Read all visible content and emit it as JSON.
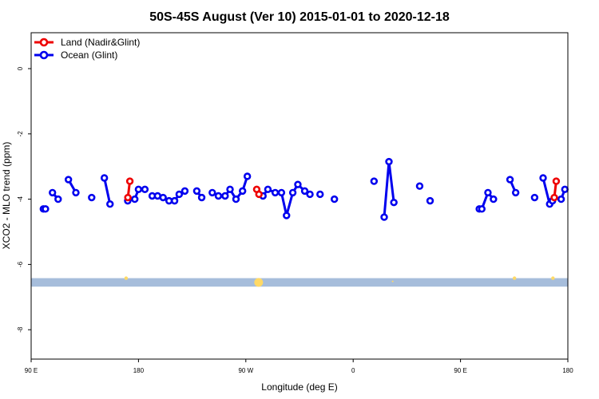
{
  "chart_data": {
    "type": "line",
    "title": "50S-45S August (Ver 10)   2015-01-01 to 2020-12-18",
    "xlabel": "Longitude (deg E)",
    "ylabel": "XCO2 - MLO trend (ppm)",
    "xlim": [
      90,
      450
    ],
    "ylim": [
      -8.9,
      1.1
    ],
    "x_ticks": [
      {
        "value": 90,
        "label": "90 E"
      },
      {
        "value": 162,
        "label": "180"
      },
      {
        "value": 234,
        "label": "90 W"
      },
      {
        "value": 306,
        "label": "0"
      },
      {
        "value": 378,
        "label": "90 E"
      },
      {
        "value": 450,
        "label": "180"
      }
    ],
    "y_ticks": [
      {
        "value": 0,
        "label": "0"
      },
      {
        "value": -2,
        "label": "-2"
      },
      {
        "value": -4,
        "label": "-4"
      },
      {
        "value": -6,
        "label": "-6"
      },
      {
        "value": -8,
        "label": "-8"
      }
    ],
    "legend_position": "top-left",
    "series": [
      {
        "name": "Land (Nadir&Glint)",
        "color": "#ee0000",
        "segments": [
          [
            [
              154.9,
              -3.95
            ],
            [
              156.2,
              -3.45
            ]
          ],
          [
            [
              241.3,
              -3.7
            ],
            [
              242.8,
              -3.85
            ]
          ],
          [
            [
              440.9,
              -3.95
            ],
            [
              442.2,
              -3.45
            ]
          ]
        ]
      },
      {
        "name": "Ocean (Glint)",
        "color": "#0000ee",
        "segments": [
          [
            [
              98.2,
              -4.3
            ],
            [
              99.6,
              -4.3
            ]
          ],
          [
            [
              104.3,
              -3.8
            ],
            [
              108.1,
              -4.0
            ]
          ],
          [
            [
              115.0,
              -3.4
            ],
            [
              120.0,
              -3.8
            ]
          ],
          [
            [
              130.6,
              -3.95
            ]
          ],
          [
            [
              139.1,
              -3.35
            ],
            [
              142.9,
              -4.15
            ]
          ],
          [
            [
              154.8,
              -4.05
            ]
          ],
          [
            [
              159.5,
              -4.0
            ],
            [
              162.0,
              -3.7
            ],
            [
              166.3,
              -3.7
            ]
          ],
          [
            [
              171.2,
              -3.9
            ],
            [
              174.8,
              -3.9
            ],
            [
              178.5,
              -3.95
            ],
            [
              182.5,
              -4.05
            ],
            [
              186.2,
              -4.05
            ],
            [
              189.3,
              -3.85
            ],
            [
              193.1,
              -3.75
            ]
          ],
          [
            [
              201.1,
              -3.75
            ],
            [
              204.4,
              -3.95
            ]
          ],
          [
            [
              211.5,
              -3.8
            ],
            [
              215.6,
              -3.9
            ],
            [
              220.1,
              -3.9
            ],
            [
              223.4,
              -3.7
            ],
            [
              227.4,
              -4.0
            ],
            [
              231.8,
              -3.75
            ],
            [
              235.0,
              -3.3
            ]
          ],
          [
            [
              245.5,
              -3.9
            ],
            [
              248.8,
              -3.7
            ],
            [
              253.7,
              -3.8
            ],
            [
              257.9,
              -3.8
            ],
            [
              261.3,
              -4.5
            ],
            [
              265.5,
              -3.8
            ],
            [
              268.9,
              -3.55
            ],
            [
              273.5,
              -3.75
            ],
            [
              277.0,
              -3.85
            ]
          ],
          [
            [
              283.8,
              -3.85
            ]
          ],
          [
            [
              293.4,
              -4.0
            ]
          ],
          [
            [
              320.0,
              -3.45
            ]
          ],
          [
            [
              326.8,
              -4.55
            ],
            [
              330.0,
              -2.85
            ],
            [
              333.3,
              -4.1
            ]
          ],
          [
            [
              350.6,
              -3.6
            ]
          ],
          [
            [
              357.6,
              -4.05
            ]
          ],
          [
            [
              390.6,
              -4.3
            ],
            [
              392.3,
              -4.3
            ],
            [
              396.4,
              -3.8
            ],
            [
              400.1,
              -4.0
            ]
          ],
          [
            [
              411.2,
              -3.4
            ],
            [
              415.0,
              -3.8
            ]
          ],
          [
            [
              427.7,
              -3.95
            ]
          ],
          [
            [
              433.4,
              -3.35
            ],
            [
              437.8,
              -4.15
            ]
          ],
          [
            [
              439.7,
              -4.05
            ]
          ],
          [
            [
              445.5,
              -4.0
            ],
            [
              448.0,
              -3.7
            ]
          ]
        ]
      }
    ],
    "band": {
      "y_min": -6.68,
      "y_max": -6.42,
      "color": "#a6bddb"
    },
    "band_markers": {
      "color": "#ffd966",
      "points": [
        {
          "x": 153.7,
          "y": -6.42,
          "r": 2.2
        },
        {
          "x": 242.6,
          "y": -6.55,
          "r": 5.5
        },
        {
          "x": 332.5,
          "y": -6.52,
          "r": 1
        },
        {
          "x": 414.2,
          "y": -6.42,
          "r": 2.2
        },
        {
          "x": 440.0,
          "y": -6.42,
          "r": 2.2
        }
      ]
    }
  }
}
